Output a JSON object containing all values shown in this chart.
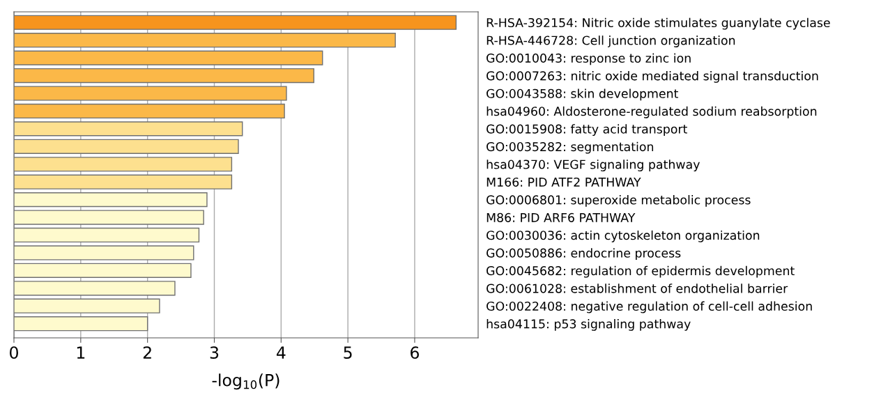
{
  "chart_data": {
    "type": "bar",
    "orientation": "horizontal",
    "xlabel": "-log$_{10}$(P)",
    "categories": [
      "R-HSA-392154: Nitric oxide stimulates guanylate cyclase",
      "R-HSA-446728: Cell junction organization",
      "GO:0010043: response to zinc ion",
      "GO:0007263: nitric oxide mediated signal transduction",
      "GO:0043588: skin development",
      "hsa04960: Aldosterone-regulated sodium reabsorption",
      "GO:0015908: fatty acid transport",
      "GO:0035282: segmentation",
      "hsa04370: VEGF signaling pathway",
      "M166: PID ATF2 PATHWAY",
      "GO:0006801: superoxide metabolic process",
      "M86: PID ARF6 PATHWAY",
      "GO:0030036: actin cytoskeleton organization",
      "GO:0050886: endocrine process",
      "GO:0045682: regulation of epidermis development",
      "GO:0061028: establishment of endothelial barrier",
      "GO:0022408: negative regulation of cell-cell adhesion",
      "hsa04115: p53 signaling pathway"
    ],
    "values": [
      6.62,
      5.71,
      4.62,
      4.49,
      4.08,
      4.05,
      3.42,
      3.36,
      3.26,
      3.26,
      2.89,
      2.84,
      2.77,
      2.69,
      2.65,
      2.41,
      2.18,
      2.0
    ],
    "colors": [
      "#f7941d",
      "#fbb848",
      "#fbb848",
      "#fbb848",
      "#fbb848",
      "#fbb848",
      "#fde08f",
      "#fde08f",
      "#fde08f",
      "#fde08f",
      "#fefacd",
      "#fefacd",
      "#fefacd",
      "#fefacd",
      "#fefacd",
      "#fefacd",
      "#fefacd",
      "#fefacd"
    ],
    "xlim": [
      0,
      6.95
    ],
    "xticks": [
      0,
      1,
      2,
      3,
      4,
      5,
      6
    ],
    "grid": "x"
  }
}
